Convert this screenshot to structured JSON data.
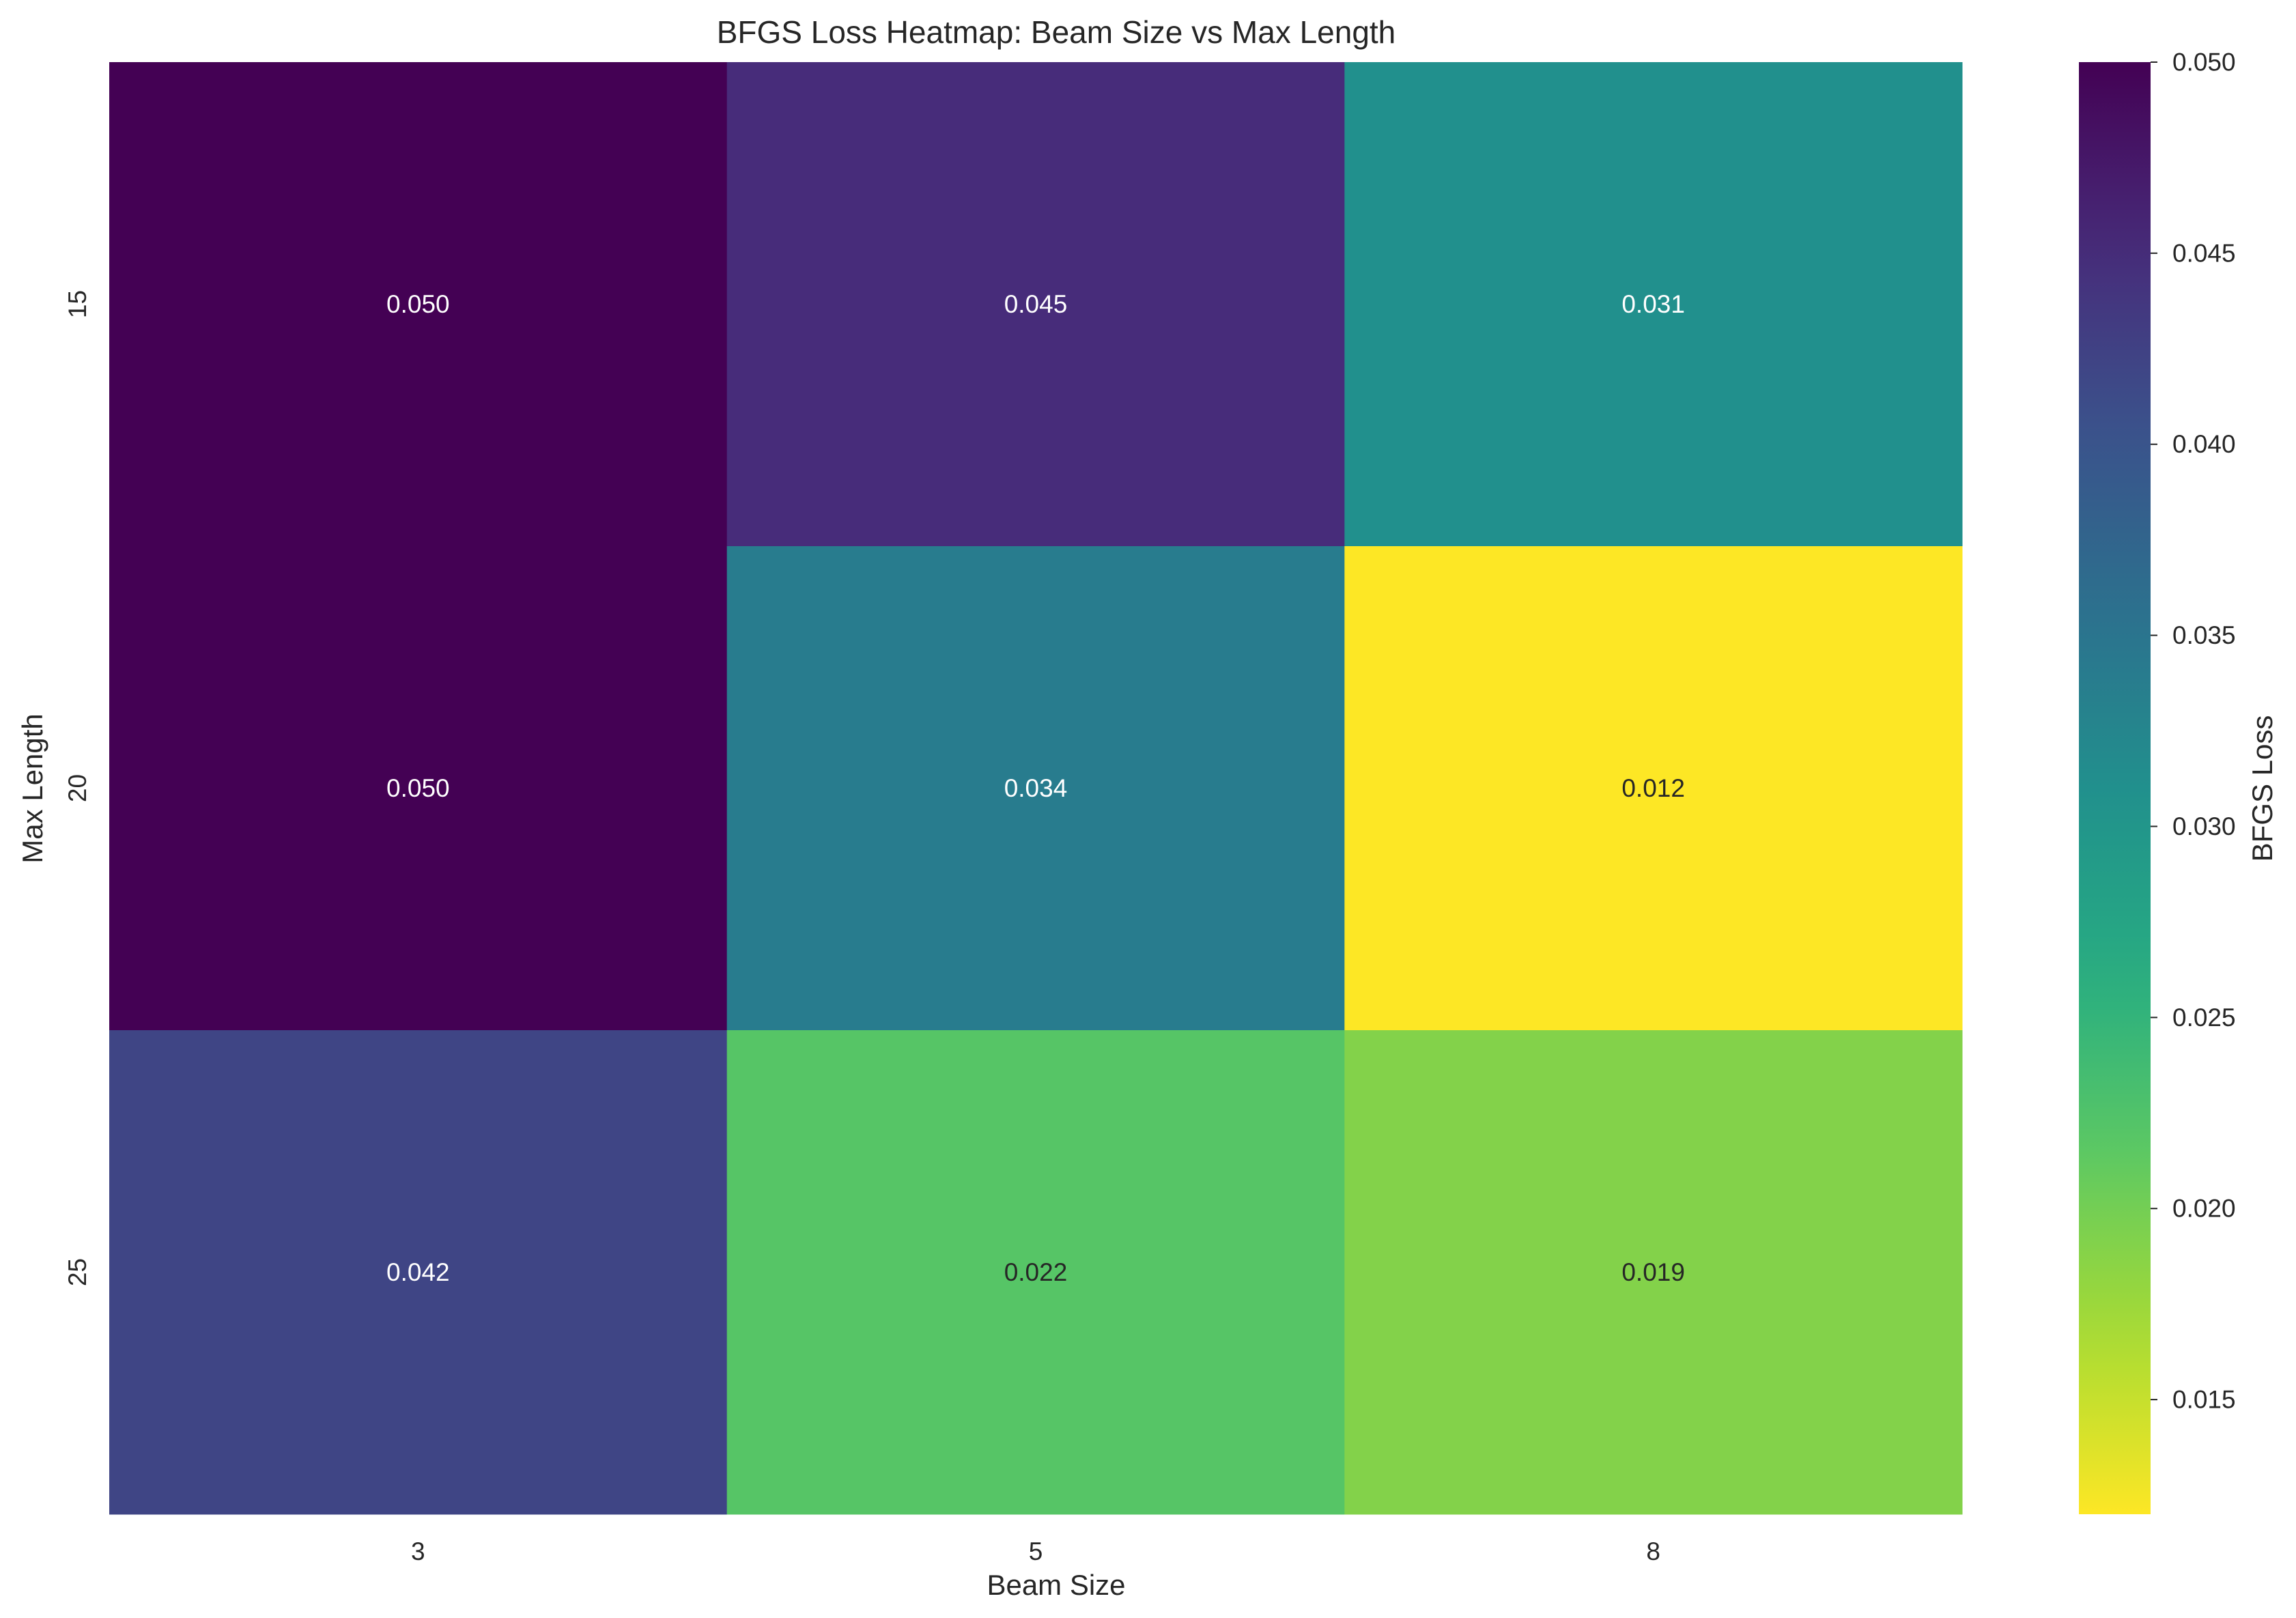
{
  "chart_data": {
    "type": "heatmap",
    "title": "BFGS Loss Heatmap: Beam Size vs Max Length",
    "xlabel": "Beam Size",
    "ylabel": "Max Length",
    "x_categories": [
      "3",
      "5",
      "8"
    ],
    "y_categories": [
      "15",
      "20",
      "25"
    ],
    "values": [
      [
        0.05,
        0.045,
        0.031
      ],
      [
        0.05,
        0.034,
        0.012
      ],
      [
        0.042,
        0.022,
        0.019
      ]
    ],
    "cell_labels": [
      [
        "0.050",
        "0.045",
        "0.031"
      ],
      [
        "0.050",
        "0.034",
        "0.012"
      ],
      [
        "0.042",
        "0.022",
        "0.019"
      ]
    ],
    "colormap": "viridis_r",
    "vmin": 0.012,
    "vmax": 0.05,
    "colorbar": {
      "label": "BFGS Loss",
      "ticks": [
        0.015,
        0.02,
        0.025,
        0.03,
        0.035,
        0.04,
        0.045,
        0.05
      ],
      "tick_labels": [
        "0.015",
        "0.020",
        "0.025",
        "0.030",
        "0.035",
        "0.040",
        "0.045",
        "0.050"
      ]
    },
    "grid": false,
    "legend": "colorbar-right"
  }
}
